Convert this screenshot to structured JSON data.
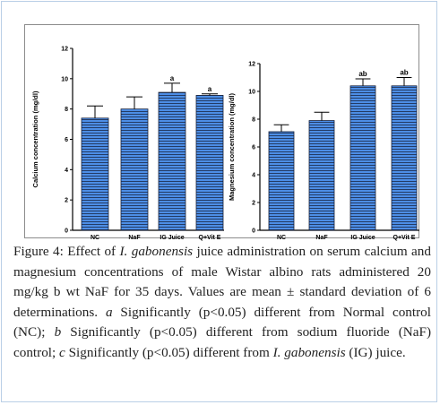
{
  "caption": {
    "label": "Figure 4:",
    "text_1": " Effect of ",
    "species_1": "I. gabonensis",
    "text_2": " juice administration on serum calcium and magnesium concentrations of male Wistar albino rats administered 20 mg/kg b wt NaF for 35 days. Values are mean ± standard deviation of 6 determinations. ",
    "sig_a": "a",
    "text_3": " Significantly (p<0.05) different from Normal control (NC); ",
    "sig_b": "b",
    "text_4": " Significantly (p<0.05) different from sodium fluoride (NaF) control; ",
    "sig_c": "c",
    "text_5": " Significantly (p<0.05) different from ",
    "species_2": "I. gabonensis",
    "text_6": " (IG) juice."
  },
  "colors": {
    "bar": "#4d8ee6",
    "stripe": "#16203a",
    "axis": "#000000"
  },
  "chart_data": [
    {
      "type": "bar",
      "title": "",
      "xlabel": "",
      "ylabel": "Calcium concentration (mg/dl)",
      "ylim": [
        0,
        12
      ],
      "yticks": [
        0,
        2,
        4,
        6,
        8,
        10,
        12
      ],
      "categories": [
        "NC",
        "NaF",
        "IG Juice",
        "Q+Vit E"
      ],
      "values": [
        7.4,
        8.0,
        9.1,
        8.9
      ],
      "errors": [
        0.8,
        0.8,
        0.6,
        0.1
      ],
      "annotations": [
        "",
        "",
        "a",
        "a"
      ]
    },
    {
      "type": "bar",
      "title": "",
      "xlabel": "",
      "ylabel": "Magnesium concentration (mg/dl)",
      "ylim": [
        0,
        12
      ],
      "yticks": [
        0,
        2,
        4,
        6,
        8,
        10,
        12
      ],
      "categories": [
        "NC",
        "NaF",
        "IG Juice",
        "Q+Vit E"
      ],
      "values": [
        7.1,
        7.9,
        10.4,
        10.4
      ],
      "errors": [
        0.5,
        0.6,
        0.5,
        0.6
      ],
      "annotations": [
        "",
        "",
        "ab",
        "ab"
      ]
    }
  ]
}
